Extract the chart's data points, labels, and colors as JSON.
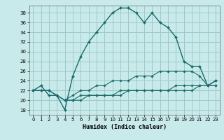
{
  "xlabel": "Humidex (Indice chaleur)",
  "bg_color": "#c8eaea",
  "grid_color": "#a0c8c8",
  "line_color": "#1a6b6b",
  "xlim": [
    -0.5,
    23.5
  ],
  "ylim": [
    17,
    39.5
  ],
  "yticks": [
    18,
    20,
    22,
    24,
    26,
    28,
    30,
    32,
    34,
    36,
    38
  ],
  "xticks": [
    0,
    1,
    2,
    3,
    4,
    5,
    6,
    7,
    8,
    9,
    10,
    11,
    12,
    13,
    14,
    15,
    16,
    17,
    18,
    19,
    20,
    21,
    22,
    23
  ],
  "series": [
    [
      22,
      23,
      21,
      21,
      18,
      25,
      29,
      32,
      34,
      36,
      38,
      39,
      39,
      38,
      36,
      38,
      36,
      35,
      33,
      28,
      27,
      27,
      23,
      24
    ],
    [
      22,
      22,
      22,
      21,
      20,
      21,
      22,
      22,
      23,
      23,
      24,
      24,
      24,
      25,
      25,
      25,
      26,
      26,
      26,
      26,
      26,
      25,
      23,
      24
    ],
    [
      22,
      22,
      22,
      21,
      20,
      20,
      21,
      21,
      21,
      21,
      21,
      22,
      22,
      22,
      22,
      22,
      22,
      22,
      23,
      23,
      23,
      23,
      23,
      23
    ],
    [
      22,
      22,
      22,
      21,
      20,
      20,
      20,
      21,
      21,
      21,
      21,
      21,
      22,
      22,
      22,
      22,
      22,
      22,
      22,
      22,
      22,
      23,
      23,
      23
    ]
  ]
}
